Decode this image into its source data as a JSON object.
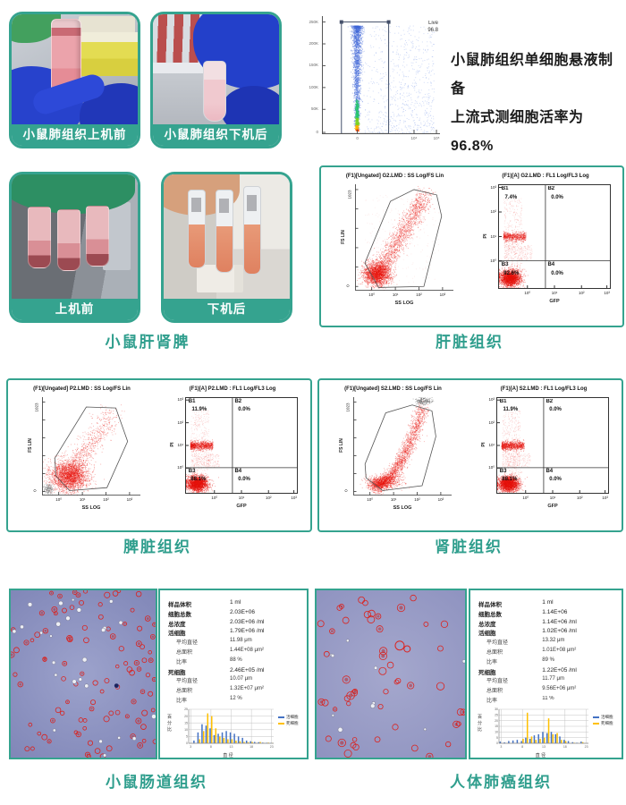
{
  "accent": "#35a38f",
  "title_color": "#2f9e8d",
  "row1": {
    "photo_before": {
      "label": "小鼠肺组织上机前"
    },
    "photo_after": {
      "label": "小鼠肺组织下机后"
    },
    "caption_line1": "小鼠肺组织单细胞悬液制备",
    "caption_line2": "上流式测细胞活率为96.8%",
    "viability": {
      "gate_name": "Live",
      "gate_value": "96.8",
      "y_ticks": [
        "250K",
        "200K",
        "150K",
        "100K",
        "50K",
        "0"
      ],
      "x_ticks": [
        "0",
        "10⁴",
        "10⁵"
      ]
    }
  },
  "row2": {
    "photo_before": {
      "label": "上机前"
    },
    "photo_after": {
      "label": "下机后"
    },
    "group_title": "小鼠肝肾脾"
  },
  "flow_panels": [
    {
      "key": "liver",
      "title": "肝脏组织",
      "scatter": {
        "title": "(F1)[Ungated] G2.LMD : SS Log/FS Lin",
        "ylabel": "FS LIN",
        "xlabel": "SS LOG",
        "y_top": "1023",
        "y_bottom": "0",
        "x_ticks": [
          "10⁰",
          "10¹",
          "10²",
          "10³"
        ]
      },
      "quad": {
        "title": "(F1)[A] G2.LMD : FL1 Log/FL3 Log",
        "ylabel": "PI",
        "xlabel": "GFP",
        "y_ticks": [
          "10³",
          "10²",
          "10¹",
          "10⁰"
        ],
        "x_ticks": [
          "10⁰",
          "10¹",
          "10²",
          "10³"
        ],
        "B1": "7.4%",
        "B2": "0.0%",
        "B3": "92.6%",
        "B4": "0.0%"
      }
    },
    {
      "key": "spleen",
      "title": "脾脏组织",
      "scatter": {
        "title": "(F1)[Ungated] P2.LMD : SS Log/FS Lin",
        "ylabel": "FS LIN",
        "xlabel": "SS LOG",
        "y_top": "1023",
        "y_bottom": "0",
        "x_ticks": [
          "10⁰",
          "10¹",
          "10²",
          "10³"
        ]
      },
      "quad": {
        "title": "(F1)[A] P2.LMD : FL1 Log/FL3 Log",
        "ylabel": "PI",
        "xlabel": "GFP",
        "y_ticks": [
          "10³",
          "10²",
          "10¹",
          "10⁰"
        ],
        "x_ticks": [
          "10⁰",
          "10¹",
          "10²",
          "10³"
        ],
        "B1": "11.9%",
        "B2": "0.0%",
        "B3": "88.1%",
        "B4": "0.0%"
      }
    },
    {
      "key": "kidney",
      "title": "肾脏组织",
      "scatter": {
        "title": "(F1)[Ungated] S2.LMD : SS Log/FS Lin",
        "ylabel": "FS LIN",
        "xlabel": "SS LOG",
        "y_top": "1023",
        "y_bottom": "0",
        "x_ticks": [
          "10⁰",
          "10¹",
          "10²",
          "10³"
        ]
      },
      "quad": {
        "title": "(F1)[A] S2.LMD : FL1 Log/FL3 Log",
        "ylabel": "PI",
        "xlabel": "GFP",
        "y_ticks": [
          "10³",
          "10²",
          "10¹",
          "10⁰"
        ],
        "x_ticks": [
          "10⁰",
          "10¹",
          "10²",
          "10³"
        ],
        "B1": "11.9%",
        "B2": "0.0%",
        "B3": "88.1%",
        "B4": "0.0%"
      }
    }
  ],
  "micro_panels": [
    {
      "key": "intestine",
      "title": "小鼠肠道组织",
      "hist_index": 7,
      "stats": [
        {
          "label": "样品体积",
          "value": "1 ml",
          "sub": false
        },
        {
          "label": "细胞总数",
          "value": "2.03E+06",
          "sub": false
        },
        {
          "label": "总浓度",
          "value": "2.03E+06 /ml",
          "sub": false
        },
        {
          "label": "活细胞",
          "value": "1.79E+06 /ml",
          "sub": false
        },
        {
          "label": "平均直径",
          "value": "11.98 μm",
          "sub": true
        },
        {
          "label": "总面积",
          "value": "1.44E+08 μm²",
          "sub": true
        },
        {
          "label": "比率",
          "value": "88 %",
          "sub": true
        },
        {
          "label": "死细胞",
          "value": "2.46E+05 /ml",
          "sub": false
        },
        {
          "label": "平均直径",
          "value": "10.07 μm",
          "sub": true
        },
        {
          "label": "总面积",
          "value": "1.32E+07 μm²",
          "sub": true
        },
        {
          "label": "比率",
          "value": "12 %",
          "sub": true
        }
      ]
    },
    {
      "key": "lungcancer",
      "title": "人体肺癌组织",
      "hist_index": 8,
      "stats": [
        {
          "label": "样品体积",
          "value": "1 ml",
          "sub": false
        },
        {
          "label": "细胞总数",
          "value": "1.14E+06",
          "sub": false
        },
        {
          "label": "总浓度",
          "value": "1.14E+06 /ml",
          "sub": false
        },
        {
          "label": "活细胞",
          "value": "1.02E+06 /ml",
          "sub": false
        },
        {
          "label": "平均直径",
          "value": "13.32 μm",
          "sub": true
        },
        {
          "label": "总面积",
          "value": "1.01E+08 μm²",
          "sub": true
        },
        {
          "label": "比率",
          "value": "89 %",
          "sub": true
        },
        {
          "label": "死细胞",
          "value": "1.22E+05 /ml",
          "sub": false
        },
        {
          "label": "平均直径",
          "value": "11.77 μm",
          "sub": true
        },
        {
          "label": "总面积",
          "value": "9.56E+06 μm²",
          "sub": true
        },
        {
          "label": "比率",
          "value": "11 %",
          "sub": true
        }
      ]
    }
  ],
  "histogram_common": {
    "ylabel": "百分比",
    "xlabel": "直 径",
    "legend": [
      {
        "name": "活细胞",
        "color": "#4472c4"
      },
      {
        "name": "死细胞",
        "color": "#ffc000"
      }
    ]
  },
  "chart_data": [
    {
      "id": "viability_scatter",
      "type": "scatter",
      "title": "Live gate",
      "x_ticks": [
        "0",
        "10⁴",
        "10⁵"
      ],
      "y_ticks": [
        "0",
        "50K",
        "100K",
        "150K",
        "200K",
        "250K"
      ],
      "gates": [
        {
          "name": "Live",
          "percent": 96.8
        }
      ],
      "note": "blue density scatter, dense vertical streak inside rectangular Live gate"
    },
    {
      "id": "liver_ss_fs",
      "type": "scatter",
      "title": "(F1)[Ungated] G2.LMD : SS Log/FS Lin",
      "xlabel": "SS LOG",
      "ylabel": "FS LIN",
      "ylim": [
        0,
        1023
      ],
      "xscale": "log 10^0-10^3",
      "note": "red cloud, dense lower-left blob with diagonal band, polygon gate"
    },
    {
      "id": "liver_pi_gfp",
      "type": "quadrant",
      "title": "(F1)[A] G2.LMD : FL1 Log/FL3 Log",
      "xlabel": "GFP",
      "ylabel": "PI",
      "xscale": "log 10^0-10^3",
      "yscale": "log 10^0-10^3",
      "quadrants": {
        "B1": 7.4,
        "B2": 0.0,
        "B3": 92.6,
        "B4": 0.0
      }
    },
    {
      "id": "spleen_ss_fs",
      "type": "scatter",
      "title": "(F1)[Ungated] P2.LMD : SS Log/FS Lin",
      "xlabel": "SS LOG",
      "ylabel": "FS LIN",
      "ylim": [
        0,
        1023
      ],
      "xscale": "log 10^0-10^3",
      "note": "red cloud, broad lower-left blob with sparse up-right spray, polygon gate"
    },
    {
      "id": "spleen_pi_gfp",
      "type": "quadrant",
      "title": "(F1)[A] P2.LMD : FL1 Log/FL3 Log",
      "xlabel": "GFP",
      "ylabel": "PI",
      "xscale": "log 10^0-10^3",
      "yscale": "log 10^0-10^3",
      "quadrants": {
        "B1": 11.9,
        "B2": 0.0,
        "B3": 88.1,
        "B4": 0.0
      }
    },
    {
      "id": "kidney_ss_fs",
      "type": "scatter",
      "title": "(F1)[Ungated] S2.LMD : SS Log/FS Lin",
      "xlabel": "SS LOG",
      "ylabel": "FS LIN",
      "ylim": [
        0,
        1023
      ],
      "xscale": "log 10^0-10^3",
      "note": "red curved arc rising to upper right, polygon gate, grey debris at top"
    },
    {
      "id": "kidney_pi_gfp",
      "type": "quadrant",
      "title": "(F1)[A] S2.LMD : FL1 Log/FL3 Log",
      "xlabel": "GFP",
      "ylabel": "PI",
      "xscale": "log 10^0-10^3",
      "yscale": "log 10^0-10^3",
      "quadrants": {
        "B1": 11.9,
        "B2": 0.0,
        "B3": 88.1,
        "B4": 0.0
      }
    },
    {
      "id": "hist_intestine",
      "type": "bar",
      "title": "小鼠肠道组织 直径分布",
      "xlabel": "直 径",
      "ylabel": "百分比",
      "ylim": [
        0,
        25
      ],
      "x_ticks": [
        3,
        8,
        13,
        18,
        23
      ],
      "categories": [
        3,
        4,
        5,
        6,
        7,
        8,
        9,
        10,
        11,
        12,
        13,
        14,
        15,
        16,
        17,
        18,
        19,
        20,
        21,
        22,
        23
      ],
      "series": [
        {
          "name": "活细胞",
          "color": "#4472c4",
          "values": [
            0,
            2,
            8,
            14,
            13,
            11,
            6,
            7,
            8,
            9,
            8,
            7,
            5,
            4,
            2,
            1.5,
            1,
            0.8,
            0.5,
            0.4,
            0.3
          ]
        },
        {
          "name": "死细胞",
          "color": "#ffc000",
          "values": [
            0,
            0,
            3,
            9,
            22,
            20,
            11,
            5,
            4,
            3,
            3,
            2,
            1.5,
            1,
            0.8,
            1,
            0.3,
            1,
            0.2,
            0.5,
            0.2
          ]
        }
      ]
    },
    {
      "id": "hist_lungcancer",
      "type": "bar",
      "title": "人体肺癌组织 直径分布",
      "xlabel": "直 径",
      "ylabel": "百分比",
      "ylim": [
        0,
        30
      ],
      "x_ticks": [
        3,
        8,
        13,
        18,
        23
      ],
      "categories": [
        3,
        4,
        5,
        6,
        7,
        8,
        9,
        10,
        11,
        12,
        13,
        14,
        15,
        16,
        17,
        18,
        19,
        20,
        21,
        22,
        23
      ],
      "series": [
        {
          "name": "活细胞",
          "color": "#4472c4",
          "values": [
            1.5,
            0.8,
            2,
            2.5,
            3,
            2,
            5,
            4,
            7,
            8,
            10,
            9,
            10,
            8,
            6,
            3,
            2,
            1,
            0.5,
            1.5,
            0
          ]
        },
        {
          "name": "死细胞",
          "color": "#ffc000",
          "values": [
            0,
            0,
            0,
            0,
            0,
            4,
            27,
            6,
            3,
            4,
            5,
            22,
            8,
            9,
            3,
            2,
            0,
            0.5,
            0,
            1,
            0
          ]
        }
      ]
    }
  ]
}
